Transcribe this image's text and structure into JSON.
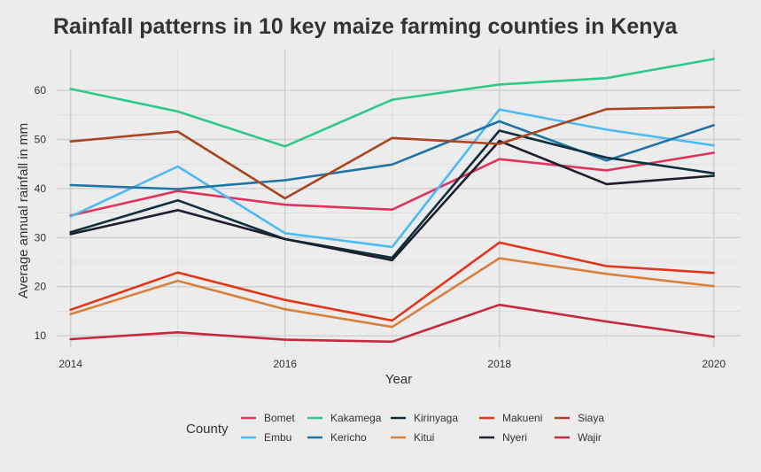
{
  "chart_data": {
    "type": "line",
    "title": "Rainfall patterns in 10 key maize farming counties in Kenya",
    "xlabel": "Year",
    "ylabel": "Average annual rainfall in mm",
    "xlim": [
      2013.87,
      2020.25
    ],
    "ylim": [
      7.5,
      68.5
    ],
    "x_ticks": [
      2014,
      2016,
      2018,
      2020
    ],
    "y_ticks": [
      10,
      20,
      30,
      40,
      50,
      60
    ],
    "grid": true,
    "legend_title": "County",
    "legend_position": "bottom",
    "x": [
      2014,
      2015,
      2016,
      2017,
      2018,
      2019,
      2020
    ],
    "series": [
      {
        "name": "Bomet",
        "color": "#e0335e",
        "values": [
          34.5,
          39.5,
          36.7,
          35.7,
          46.0,
          43.7,
          47.3
        ]
      },
      {
        "name": "Embu",
        "color": "#4cbbf2",
        "values": [
          34.3,
          44.5,
          30.9,
          28.1,
          56.1,
          52.0,
          48.8
        ]
      },
      {
        "name": "Kakamega",
        "color": "#2dc98a",
        "values": [
          60.3,
          55.7,
          48.6,
          58.1,
          61.2,
          62.5,
          66.4
        ]
      },
      {
        "name": "Kericho",
        "color": "#1f74a3",
        "values": [
          40.7,
          39.9,
          41.7,
          44.9,
          53.7,
          45.7,
          52.9
        ]
      },
      {
        "name": "Kirinyaga",
        "color": "#0f2f3d",
        "values": [
          31.1,
          37.6,
          29.7,
          25.9,
          51.8,
          46.3,
          43.1
        ]
      },
      {
        "name": "Kitui",
        "color": "#d8803d",
        "values": [
          14.4,
          21.2,
          15.4,
          11.8,
          25.8,
          22.6,
          20.1
        ]
      },
      {
        "name": "Makueni",
        "color": "#e33519",
        "values": [
          15.3,
          22.9,
          17.3,
          13.1,
          29.0,
          24.2,
          22.8
        ]
      },
      {
        "name": "Nyeri",
        "color": "#1c1f2e",
        "values": [
          30.7,
          35.6,
          29.7,
          25.4,
          49.7,
          40.9,
          42.6
        ]
      },
      {
        "name": "Siaya",
        "color": "#a94520",
        "values": [
          49.6,
          51.6,
          38.0,
          50.3,
          49.1,
          56.2,
          56.6
        ]
      },
      {
        "name": "Wajir",
        "color": "#c6283f",
        "values": [
          9.3,
          10.7,
          9.2,
          8.8,
          16.3,
          12.9,
          9.8
        ]
      }
    ],
    "legend_order": [
      "Bomet",
      "Embu",
      "Kakamega",
      "Kericho",
      "Kirinyaga",
      "Kitui",
      "Makueni",
      "Nyeri",
      "Siaya",
      "Wajir"
    ]
  }
}
